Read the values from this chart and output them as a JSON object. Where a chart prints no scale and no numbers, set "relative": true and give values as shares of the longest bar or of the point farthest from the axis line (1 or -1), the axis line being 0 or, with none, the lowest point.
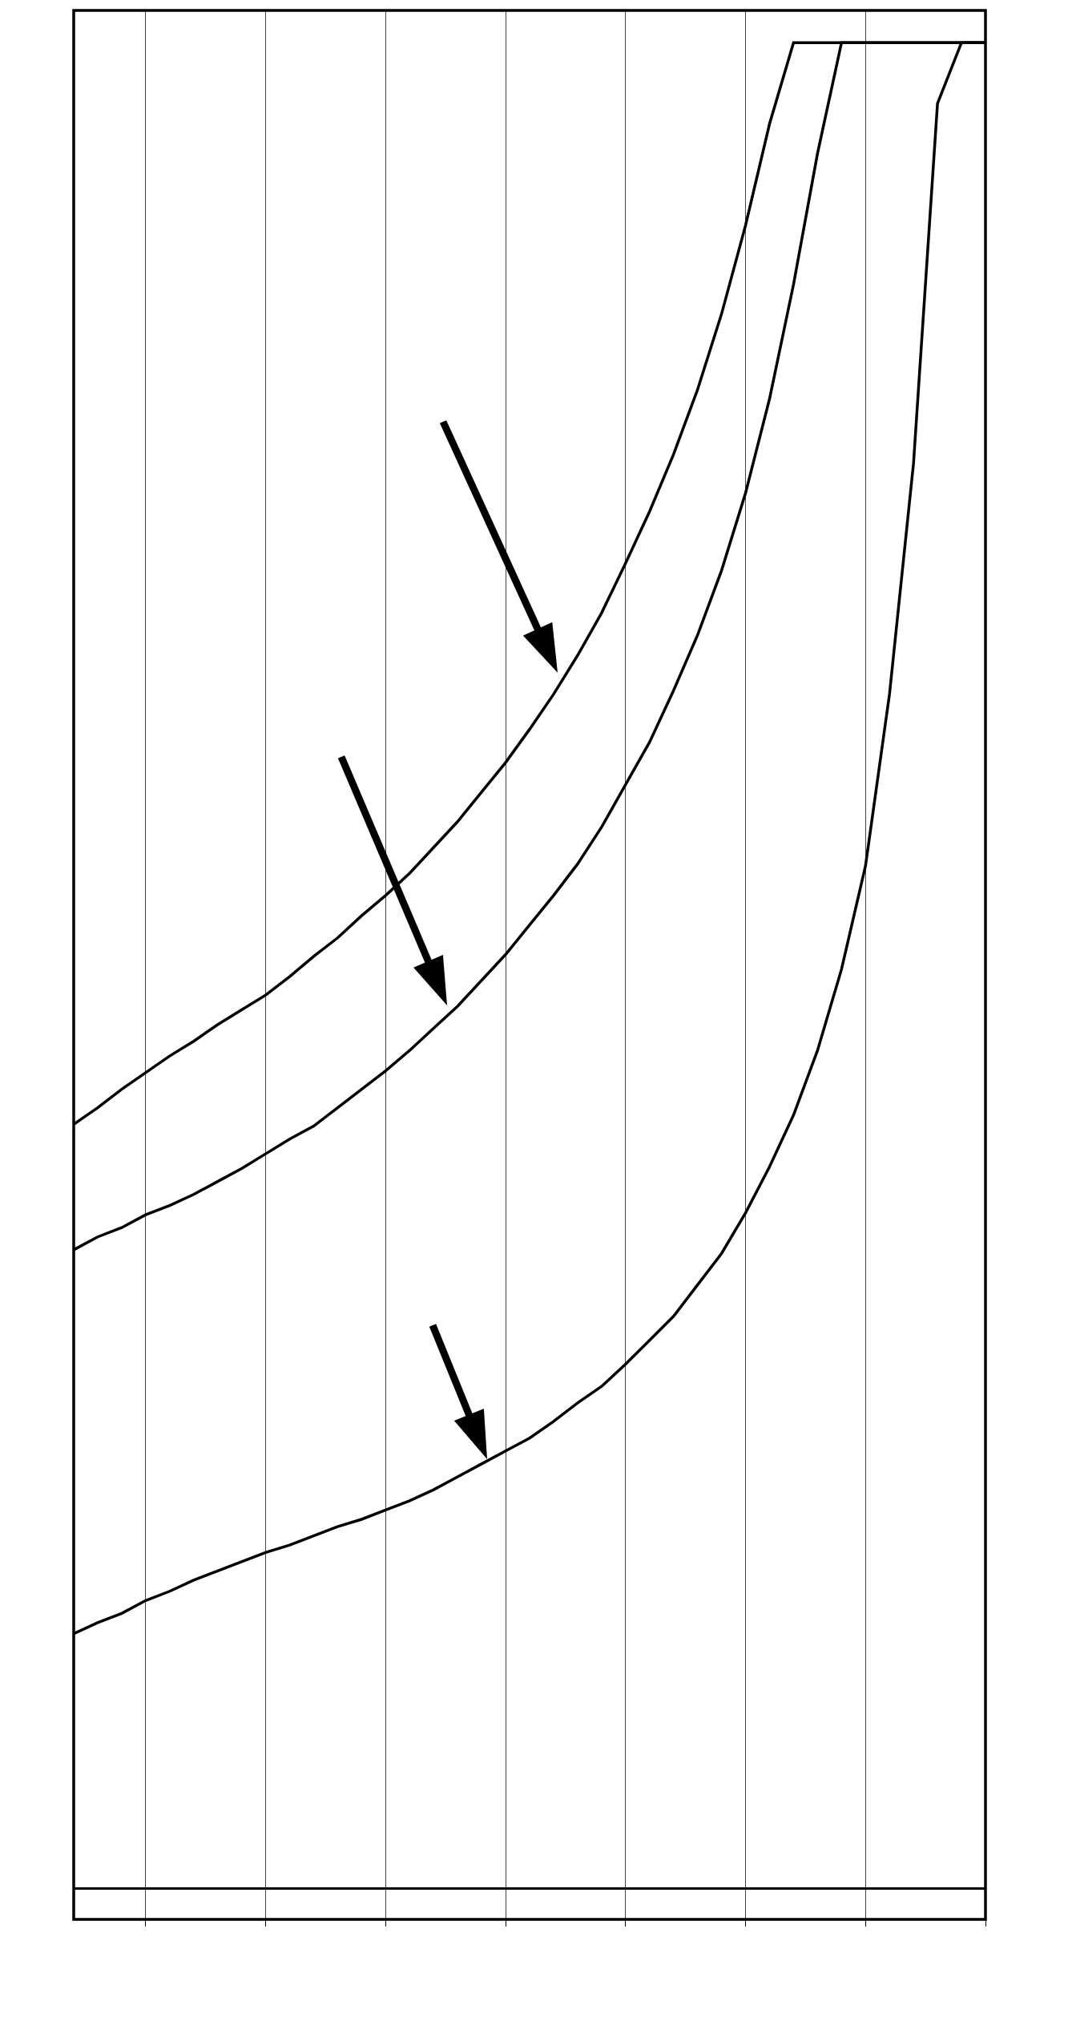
{
  "chart_data": {
    "type": "line",
    "relative": true,
    "grid": "x",
    "categories": [
      null,
      null,
      null,
      null,
      null,
      null,
      null,
      null,
      null,
      null,
      null,
      null,
      null,
      null,
      null,
      null,
      null,
      null,
      null,
      null,
      null,
      null,
      null,
      null,
      null,
      null,
      null,
      null,
      null,
      null,
      null,
      null,
      null,
      null,
      null,
      null,
      null,
      null,
      null
    ],
    "series": [
      {
        "color": "#000000",
        "values": [
          0.414,
          0.423,
          0.433,
          0.442,
          0.451,
          0.459,
          0.468,
          0.476,
          0.484,
          0.494,
          0.505,
          0.515,
          0.527,
          0.538,
          0.55,
          0.564,
          0.578,
          0.594,
          0.61,
          0.628,
          0.647,
          0.668,
          0.691,
          0.718,
          0.746,
          0.777,
          0.812,
          0.853,
          0.901,
          0.956,
          1,
          1,
          1,
          1,
          1,
          1,
          1,
          1,
          1
        ]
      },
      {
        "color": "#000000",
        "values": [
          0.346,
          0.353,
          0.358,
          0.365,
          0.37,
          0.376,
          0.383,
          0.39,
          0.398,
          0.406,
          0.413,
          0.423,
          0.433,
          0.443,
          0.454,
          0.466,
          0.478,
          0.492,
          0.506,
          0.522,
          0.538,
          0.555,
          0.575,
          0.598,
          0.621,
          0.649,
          0.679,
          0.714,
          0.756,
          0.807,
          0.869,
          0.94,
          1,
          1,
          1,
          1,
          1,
          1,
          1
        ]
      },
      {
        "color": "#000000",
        "values": [
          0.138,
          0.144,
          0.149,
          0.156,
          0.161,
          0.167,
          0.172,
          0.177,
          0.182,
          0.186,
          0.191,
          0.196,
          0.2,
          0.205,
          0.21,
          0.216,
          0.223,
          0.23,
          0.237,
          0.244,
          0.253,
          0.263,
          0.272,
          0.284,
          0.297,
          0.31,
          0.327,
          0.344,
          0.366,
          0.391,
          0.419,
          0.454,
          0.498,
          0.554,
          0.647,
          0.772,
          0.967,
          1,
          1
        ]
      }
    ]
  }
}
